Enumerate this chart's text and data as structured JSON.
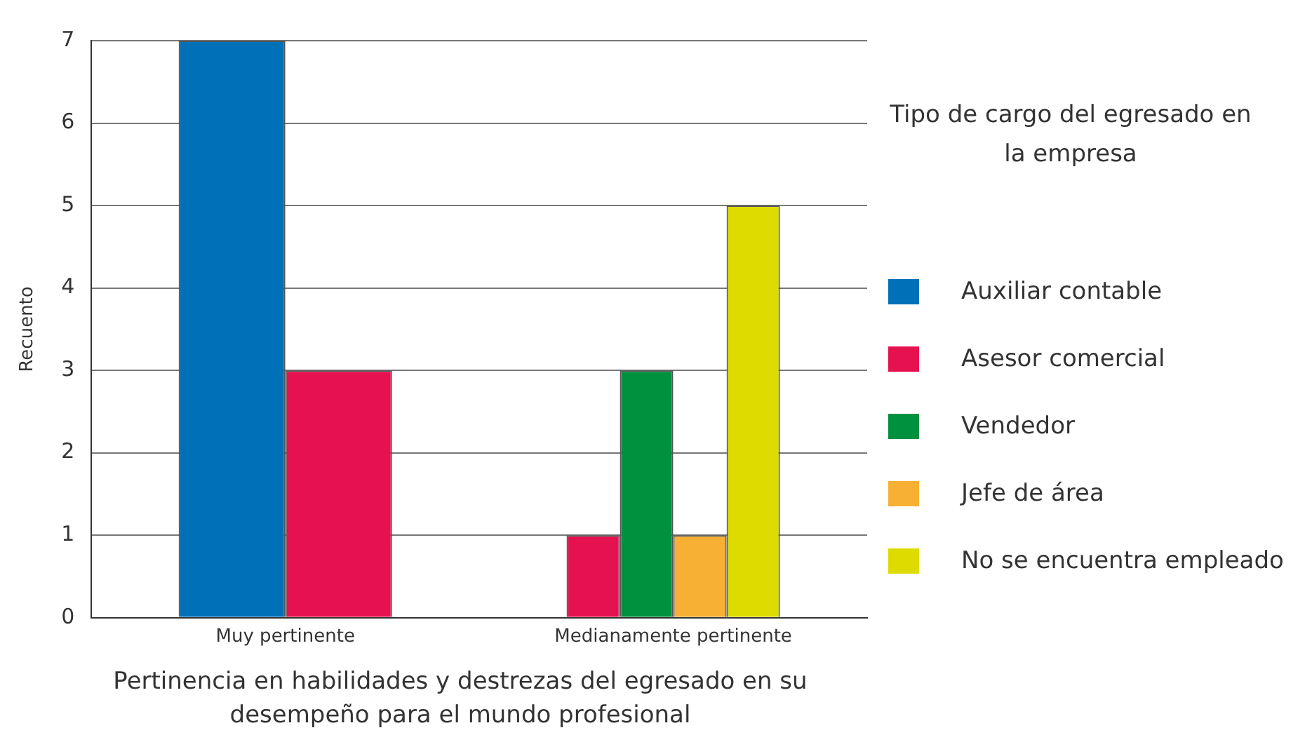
{
  "chart_data": {
    "type": "bar",
    "xlabel": "Pertinencia en habilidades y destrezas del egresado en su desempeño para el mundo profesional",
    "ylabel": "Recuento",
    "legend_title": "Tipo de cargo del egresado en la empresa",
    "legend": "right",
    "grid": "y",
    "categories": [
      "Muy pertinente",
      "Medianamente pertinente"
    ],
    "series": [
      {
        "name": "Auxiliar contable",
        "color": "#0070b8",
        "values": [
          7,
          null
        ]
      },
      {
        "name": "Asesor comercial",
        "color": "#e5124f",
        "values": [
          3,
          1
        ]
      },
      {
        "name": "Vendedor",
        "color": "#00913f",
        "values": [
          null,
          3
        ]
      },
      {
        "name": "Jefe de área",
        "color": "#f7b033",
        "values": [
          null,
          1
        ]
      },
      {
        "name": "No se encuentra empleado",
        "color": "#dedb00",
        "values": [
          null,
          5
        ]
      }
    ],
    "ylim": [
      0,
      7
    ],
    "yticks": [
      0,
      1,
      2,
      3,
      4,
      5,
      6,
      7
    ]
  }
}
